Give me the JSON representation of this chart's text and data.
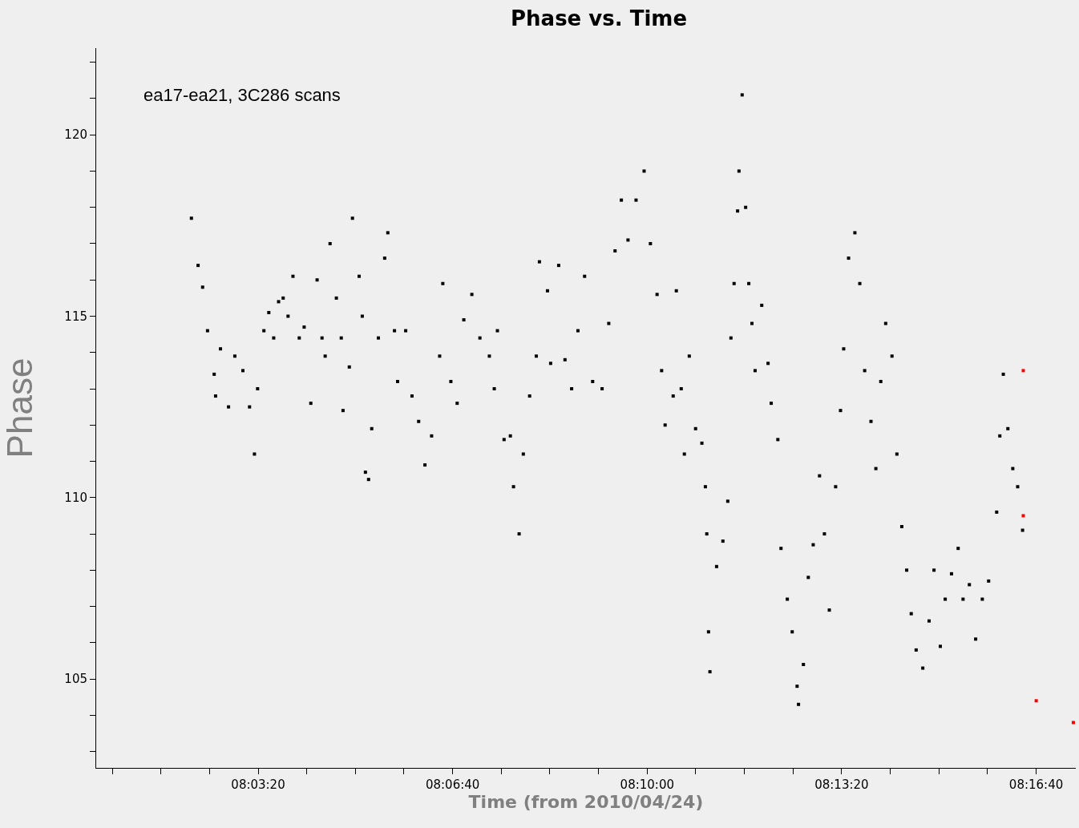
{
  "chart_data": {
    "type": "scatter",
    "title": "Phase vs. Time",
    "xlabel": "Time (from 2010/04/24)",
    "ylabel": "Phase",
    "annotations": [
      "ea17-ea21, 3C286 scans"
    ],
    "marker": "square",
    "grid": false,
    "xlim": [
      8.0093,
      8.2891
    ],
    "ylim": [
      102.55,
      122.39
    ],
    "xticks": [
      {
        "value": 8.013889,
        "label": null
      },
      {
        "value": 8.027778,
        "label": null
      },
      {
        "value": 8.041667,
        "label": null
      },
      {
        "value": 8.055556,
        "label": "08:03:20"
      },
      {
        "value": 8.069444,
        "label": null
      },
      {
        "value": 8.083333,
        "label": null
      },
      {
        "value": 8.097222,
        "label": null
      },
      {
        "value": 8.111111,
        "label": "08:06:40"
      },
      {
        "value": 8.125,
        "label": null
      },
      {
        "value": 8.138889,
        "label": null
      },
      {
        "value": 8.152778,
        "label": null
      },
      {
        "value": 8.166667,
        "label": "08:10:00"
      },
      {
        "value": 8.180556,
        "label": null
      },
      {
        "value": 8.194444,
        "label": null
      },
      {
        "value": 8.208333,
        "label": null
      },
      {
        "value": 8.222222,
        "label": "08:13:20"
      },
      {
        "value": 8.236111,
        "label": null
      },
      {
        "value": 8.25,
        "label": null
      },
      {
        "value": 8.263889,
        "label": null
      },
      {
        "value": 8.277778,
        "label": "08:16:40"
      }
    ],
    "yticks": [
      {
        "value": 103,
        "label": null
      },
      {
        "value": 104,
        "label": null
      },
      105,
      {
        "value": 106,
        "label": null
      },
      {
        "value": 107,
        "label": null
      },
      {
        "value": 108,
        "label": null
      },
      {
        "value": 109,
        "label": null
      },
      110,
      {
        "value": 111,
        "label": null
      },
      {
        "value": 112,
        "label": null
      },
      {
        "value": 113,
        "label": null
      },
      {
        "value": 114,
        "label": null
      },
      115,
      {
        "value": 116,
        "label": null
      },
      {
        "value": 117,
        "label": null
      },
      {
        "value": 118,
        "label": null
      },
      {
        "value": 119,
        "label": null
      },
      120,
      {
        "value": 121,
        "label": null
      },
      {
        "value": 122,
        "label": null
      }
    ],
    "series": [
      {
        "color": "#000000",
        "x": [
          8.0365,
          8.0384,
          8.0397,
          8.0411,
          8.043,
          8.0434,
          8.0448,
          8.0471,
          8.0489,
          8.0512,
          8.0531,
          8.0545,
          8.0554,
          8.0572,
          8.0586,
          8.06,
          8.0614,
          8.0627,
          8.0641,
          8.0655,
          8.0673,
          8.0687,
          8.0706,
          8.0724,
          8.0738,
          8.0747,
          8.0761,
          8.0779,
          8.0793,
          8.0798,
          8.0816,
          8.0825,
          8.0844,
          8.0853,
          8.0862,
          8.0871,
          8.088,
          8.0899,
          8.0917,
          8.0926,
          8.0945,
          8.0954,
          8.0977,
          8.0995,
          8.1014,
          8.1032,
          8.1051,
          8.1074,
          8.1083,
          8.1106,
          8.1124,
          8.1143,
          8.1166,
          8.1189,
          8.1216,
          8.123,
          8.1239,
          8.1258,
          8.1276,
          8.1285,
          8.1301,
          8.1313,
          8.1331,
          8.135,
          8.1359,
          8.1382,
          8.1391,
          8.1414,
          8.1432,
          8.1451,
          8.1469,
          8.1488,
          8.1511,
          8.1538,
          8.1557,
          8.1575,
          8.1593,
          8.1612,
          8.1635,
          8.1658,
          8.1676,
          8.1695,
          8.1708,
          8.1718,
          8.1741,
          8.175,
          8.1764,
          8.1773,
          8.1787,
          8.1805,
          8.1823,
          8.1833,
          8.1837,
          8.1842,
          8.1846,
          8.1865,
          8.1883,
          8.1897,
          8.1906,
          8.1915,
          8.1925,
          8.1929,
          8.1938,
          8.1948,
          8.1957,
          8.1966,
          8.1975,
          8.1994,
          8.2012,
          8.2021,
          8.204,
          8.2049,
          8.2067,
          8.2081,
          8.2095,
          8.2099,
          8.2113,
          8.2127,
          8.2141,
          8.2159,
          8.2173,
          8.2187,
          8.2205,
          8.2219,
          8.2228,
          8.2242,
          8.226,
          8.2274,
          8.2288,
          8.2306,
          8.232,
          8.2334,
          8.2348,
          8.2366,
          8.238,
          8.2394,
          8.2408,
          8.2421,
          8.2435,
          8.2454,
          8.2472,
          8.2486,
          8.2504,
          8.2518,
          8.2536,
          8.2555,
          8.2569,
          8.2587,
          8.2605,
          8.2624,
          8.2642,
          8.2665,
          8.2674,
          8.2684,
          8.2697,
          8.2711,
          8.2725,
          8.2739
        ],
        "values": [
          117.7,
          116.4,
          115.8,
          114.6,
          113.4,
          112.8,
          114.1,
          112.5,
          113.9,
          113.5,
          112.5,
          111.2,
          113.0,
          114.6,
          115.1,
          114.4,
          115.4,
          115.5,
          115.0,
          116.1,
          114.4,
          114.7,
          112.6,
          116.0,
          114.4,
          113.9,
          117.0,
          115.5,
          114.4,
          112.4,
          113.6,
          117.7,
          116.1,
          115.0,
          110.7,
          110.5,
          111.9,
          114.4,
          116.6,
          117.3,
          114.6,
          113.2,
          114.6,
          112.8,
          112.1,
          110.9,
          111.7,
          113.9,
          115.9,
          113.2,
          112.6,
          114.9,
          115.6,
          114.4,
          113.9,
          113.0,
          114.6,
          111.6,
          111.7,
          110.3,
          109.0,
          111.2,
          112.8,
          113.9,
          116.5,
          115.7,
          113.7,
          116.4,
          113.8,
          113.0,
          114.6,
          116.1,
          113.2,
          113.0,
          114.8,
          116.8,
          118.2,
          117.1,
          118.2,
          119.0,
          117.0,
          115.6,
          113.5,
          112.0,
          112.8,
          115.7,
          113.0,
          111.2,
          113.9,
          111.9,
          111.5,
          110.3,
          109.0,
          106.3,
          105.2,
          108.1,
          108.8,
          109.9,
          114.4,
          115.9,
          117.9,
          119.0,
          121.1,
          118.0,
          115.9,
          114.8,
          113.5,
          115.3,
          113.7,
          112.6,
          111.6,
          108.6,
          107.2,
          106.3,
          104.8,
          104.3,
          105.4,
          107.8,
          108.7,
          110.6,
          109.0,
          106.9,
          110.3,
          112.4,
          114.1,
          116.6,
          117.3,
          115.9,
          113.5,
          112.1,
          110.8,
          113.2,
          114.8,
          113.9,
          111.2,
          109.2,
          108.0,
          106.8,
          105.8,
          105.3,
          106.6,
          108.0,
          105.9,
          107.2,
          107.9,
          108.6,
          107.2,
          107.6,
          106.1,
          107.2,
          107.7,
          109.6,
          111.7,
          113.4,
          111.9,
          110.8,
          110.3,
          109.1
        ]
      },
      {
        "color": "#ff0000",
        "x": [
          8.2741,
          8.2741,
          8.2778,
          8.2884
        ],
        "values": [
          113.5,
          109.5,
          104.4,
          103.8
        ]
      }
    ]
  }
}
